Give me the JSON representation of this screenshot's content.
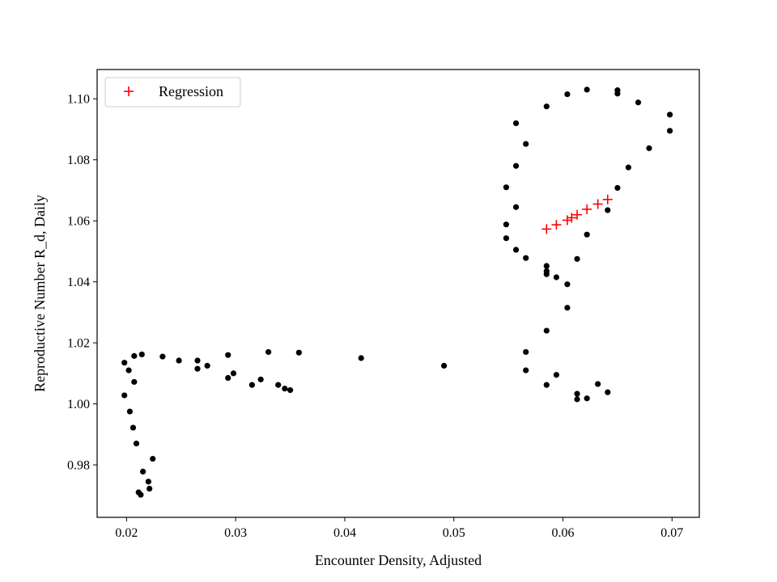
{
  "chart_data": {
    "type": "scatter",
    "title": "",
    "xlabel": "Encounter Density, Adjusted",
    "ylabel": "Reproductive Number R_d, Daily",
    "xlim": [
      0.0173,
      0.0725
    ],
    "ylim": [
      0.9628,
      1.1096
    ],
    "x_ticks": [
      0.02,
      0.03,
      0.04,
      0.05,
      0.06,
      0.07
    ],
    "x_tick_labels": [
      "0.02",
      "0.03",
      "0.04",
      "0.05",
      "0.06",
      "0.07"
    ],
    "y_ticks": [
      0.98,
      1.0,
      1.02,
      1.04,
      1.06,
      1.08,
      1.1
    ],
    "y_tick_labels": [
      "0.98",
      "1.00",
      "1.02",
      "1.04",
      "1.06",
      "1.08",
      "1.10"
    ],
    "grid": false,
    "legend_position": "upper-left",
    "colors": {
      "observed": "#000000",
      "regression": "#ff0000",
      "axes": "#000000"
    },
    "series": [
      {
        "marker": "dot",
        "color": "#000000",
        "points": [
          [
            0.0198,
            1.0135
          ],
          [
            0.0202,
            1.011
          ],
          [
            0.0207,
            1.0157
          ],
          [
            0.0214,
            1.0162
          ],
          [
            0.0207,
            1.0072
          ],
          [
            0.0198,
            1.0028
          ],
          [
            0.0203,
            0.9975
          ],
          [
            0.0206,
            0.9922
          ],
          [
            0.0209,
            0.987
          ],
          [
            0.0224,
            0.982
          ],
          [
            0.0215,
            0.9778
          ],
          [
            0.022,
            0.9745
          ],
          [
            0.0221,
            0.9722
          ],
          [
            0.0211,
            0.971
          ],
          [
            0.0213,
            0.9702
          ],
          [
            0.0233,
            1.0155
          ],
          [
            0.0248,
            1.0142
          ],
          [
            0.0265,
            1.0142
          ],
          [
            0.0265,
            1.0115
          ],
          [
            0.0274,
            1.0125
          ],
          [
            0.0293,
            1.016
          ],
          [
            0.0298,
            1.01
          ],
          [
            0.0293,
            1.0085
          ],
          [
            0.0315,
            1.0062
          ],
          [
            0.0323,
            1.008
          ],
          [
            0.033,
            1.017
          ],
          [
            0.0339,
            1.0062
          ],
          [
            0.0345,
            1.005
          ],
          [
            0.035,
            1.0045
          ],
          [
            0.0358,
            1.0168
          ],
          [
            0.0415,
            1.015
          ],
          [
            0.0491,
            1.0125
          ],
          [
            0.0548,
            1.071
          ],
          [
            0.0548,
            1.0588
          ],
          [
            0.0548,
            1.0543
          ],
          [
            0.0557,
            1.092
          ],
          [
            0.0557,
            1.078
          ],
          [
            0.0557,
            1.0645
          ],
          [
            0.0557,
            1.0505
          ],
          [
            0.0566,
            1.0852
          ],
          [
            0.0566,
            1.0478
          ],
          [
            0.0566,
            1.017
          ],
          [
            0.0566,
            1.011
          ],
          [
            0.0585,
            1.0975
          ],
          [
            0.0585,
            1.0452
          ],
          [
            0.0585,
            1.0435
          ],
          [
            0.0585,
            1.0425
          ],
          [
            0.0585,
            1.024
          ],
          [
            0.0585,
            1.0062
          ],
          [
            0.0594,
            1.0415
          ],
          [
            0.0594,
            1.0095
          ],
          [
            0.0604,
            1.1015
          ],
          [
            0.0604,
            1.0392
          ],
          [
            0.0604,
            1.0315
          ],
          [
            0.0613,
            1.0475
          ],
          [
            0.0613,
            1.0033
          ],
          [
            0.0613,
            1.0015
          ],
          [
            0.0622,
            1.103
          ],
          [
            0.0622,
            1.0555
          ],
          [
            0.0622,
            1.0018
          ],
          [
            0.0632,
            1.0065
          ],
          [
            0.0641,
            1.0635
          ],
          [
            0.0641,
            1.0038
          ],
          [
            0.065,
            1.1028
          ],
          [
            0.065,
            1.1017
          ],
          [
            0.065,
            1.0708
          ],
          [
            0.066,
            1.0775
          ],
          [
            0.0669,
            1.0988
          ],
          [
            0.0679,
            1.0838
          ],
          [
            0.0698,
            1.0948
          ],
          [
            0.0698,
            1.0895
          ]
        ]
      },
      {
        "name": "Regression",
        "marker": "plus",
        "color": "#ff0000",
        "points": [
          [
            0.0585,
            1.0573
          ],
          [
            0.0594,
            1.0587
          ],
          [
            0.0604,
            1.0602
          ],
          [
            0.0608,
            1.061
          ],
          [
            0.0613,
            1.062
          ],
          [
            0.0622,
            1.0638
          ],
          [
            0.0632,
            1.0655
          ],
          [
            0.0641,
            1.067
          ]
        ]
      }
    ]
  }
}
